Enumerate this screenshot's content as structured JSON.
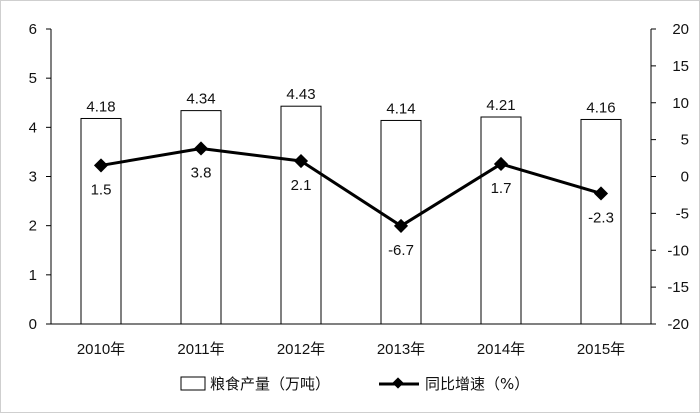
{
  "chart_data": {
    "type": "bar",
    "categories": [
      "2010年",
      "2011年",
      "2012年",
      "2013年",
      "2014年",
      "2015年"
    ],
    "series": [
      {
        "name": "粮食产量（万吨）",
        "type": "bar",
        "axis": "left",
        "values": [
          4.18,
          4.34,
          4.43,
          4.14,
          4.21,
          4.16
        ],
        "labels": [
          "4.18",
          "4.34",
          "4.43",
          "4.14",
          "4.21",
          "4.16"
        ],
        "color": "#ffffff",
        "stroke": "#000000"
      },
      {
        "name": "同比增速（%）",
        "type": "line",
        "axis": "right",
        "values": [
          1.5,
          3.8,
          2.1,
          -6.7,
          1.7,
          -2.3
        ],
        "labels": [
          "1.5",
          "3.8",
          "2.1",
          "-6.7",
          "1.7",
          "-2.3"
        ],
        "color": "#000000",
        "marker": "diamond"
      }
    ],
    "y_left": {
      "min": 0,
      "max": 6,
      "ticks": [
        "0",
        "1",
        "2",
        "3",
        "4",
        "5",
        "6"
      ]
    },
    "y_right": {
      "min": -20,
      "max": 20,
      "ticks": [
        "-20",
        "-15",
        "-10",
        "-5",
        "0",
        "5",
        "10",
        "15",
        "20"
      ]
    },
    "grid": false,
    "legend": "bottom"
  }
}
